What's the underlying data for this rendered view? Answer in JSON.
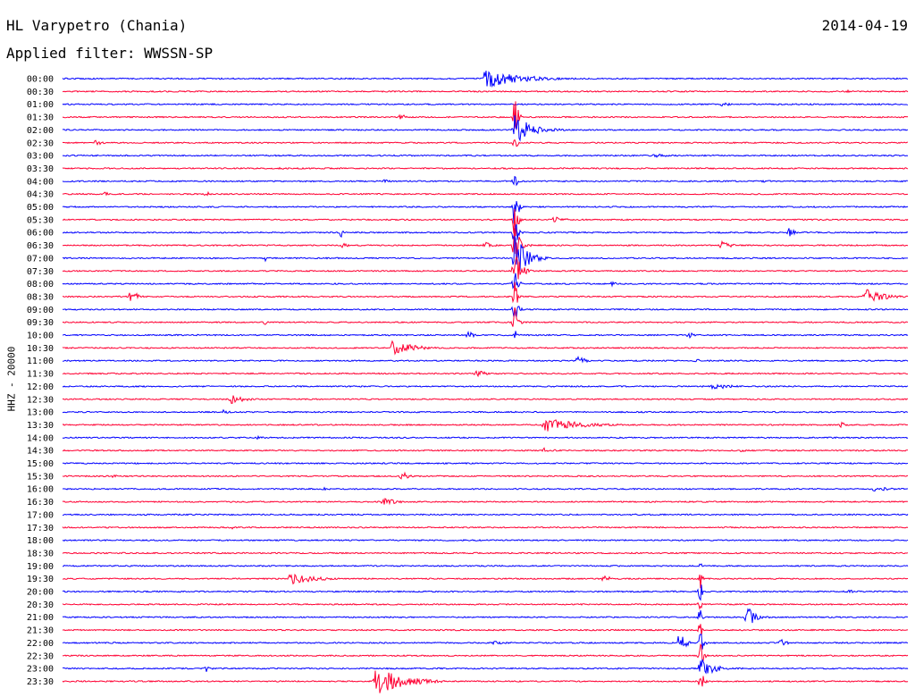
{
  "header": {
    "station": "HL Varypetro (Chania)",
    "date": "2014-04-19",
    "filter": "Applied filter: WWSSN-SP",
    "channel_label": "HHZ - 20000"
  },
  "colors": {
    "trace_even": "#0000ff",
    "trace_odd": "#ff0033"
  },
  "chart_data": {
    "type": "line",
    "title": "HL Varypetro (Chania)",
    "subtitle": "Applied filter: WWSSN-SP",
    "ylabel": "HHZ - 20000",
    "xlabel": "",
    "grid": false,
    "traces": [
      {
        "time": "00:00",
        "events": [
          {
            "at": 0.5,
            "amp": 11,
            "dur": 0.12
          }
        ]
      },
      {
        "time": "00:30",
        "events": [
          {
            "at": 0.93,
            "amp": 2,
            "dur": 0.02
          }
        ]
      },
      {
        "time": "01:00",
        "events": [
          {
            "at": 0.78,
            "amp": 3,
            "dur": 0.03
          }
        ]
      },
      {
        "time": "01:30",
        "events": [
          {
            "at": 0.4,
            "amp": 4,
            "dur": 0.02
          },
          {
            "at": 0.535,
            "amp": 28,
            "dur": 0.01
          }
        ]
      },
      {
        "time": "02:00",
        "events": [
          {
            "at": 0.535,
            "amp": 17,
            "dur": 0.06
          }
        ]
      },
      {
        "time": "02:30",
        "events": [
          {
            "at": 0.04,
            "amp": 4,
            "dur": 0.02
          },
          {
            "at": 0.535,
            "amp": 10,
            "dur": 0.01
          }
        ]
      },
      {
        "time": "03:00",
        "events": [
          {
            "at": 0.7,
            "amp": 2,
            "dur": 0.08
          }
        ]
      },
      {
        "time": "03:30",
        "events": [
          {
            "at": 0.25,
            "amp": 1,
            "dur": 0.3
          }
        ]
      },
      {
        "time": "04:00",
        "events": [
          {
            "at": 0.38,
            "amp": 3,
            "dur": 0.02
          },
          {
            "at": 0.83,
            "amp": 3,
            "dur": 0.02
          },
          {
            "at": 0.535,
            "amp": 8,
            "dur": 0.01
          }
        ]
      },
      {
        "time": "04:30",
        "events": [
          {
            "at": 0.05,
            "amp": 3,
            "dur": 0.02
          },
          {
            "at": 0.17,
            "amp": 3,
            "dur": 0.02
          }
        ]
      },
      {
        "time": "05:00",
        "events": [
          {
            "at": 0.535,
            "amp": 32,
            "dur": 0.01
          }
        ]
      },
      {
        "time": "05:30",
        "events": [
          {
            "at": 0.58,
            "amp": 4,
            "dur": 0.04
          },
          {
            "at": 0.535,
            "amp": 25,
            "dur": 0.01
          }
        ]
      },
      {
        "time": "06:00",
        "events": [
          {
            "at": 0.33,
            "amp": 6,
            "dur": 0.005
          },
          {
            "at": 0.86,
            "amp": 6,
            "dur": 0.02
          },
          {
            "at": 0.535,
            "amp": 22,
            "dur": 0.01
          }
        ]
      },
      {
        "time": "06:30",
        "events": [
          {
            "at": 0.33,
            "amp": 3,
            "dur": 0.03
          },
          {
            "at": 0.5,
            "amp": 4,
            "dur": 0.03
          },
          {
            "at": 0.78,
            "amp": 5,
            "dur": 0.03
          },
          {
            "at": 0.535,
            "amp": 24,
            "dur": 0.02
          }
        ]
      },
      {
        "time": "07:00",
        "events": [
          {
            "at": 0.535,
            "amp": 28,
            "dur": 0.04
          },
          {
            "at": 0.24,
            "amp": 4,
            "dur": 0.01
          }
        ]
      },
      {
        "time": "07:30",
        "events": [
          {
            "at": 0.535,
            "amp": 24,
            "dur": 0.02
          }
        ]
      },
      {
        "time": "08:00",
        "events": [
          {
            "at": 0.535,
            "amp": 18,
            "dur": 0.01
          },
          {
            "at": 0.65,
            "amp": 3,
            "dur": 0.02
          }
        ]
      },
      {
        "time": "08:30",
        "events": [
          {
            "at": 0.08,
            "amp": 11,
            "dur": 0.02
          },
          {
            "at": 0.95,
            "amp": 9,
            "dur": 0.06
          },
          {
            "at": 0.535,
            "amp": 18,
            "dur": 0.01
          }
        ]
      },
      {
        "time": "09:00",
        "events": [
          {
            "at": 0.535,
            "amp": 18,
            "dur": 0.01
          }
        ]
      },
      {
        "time": "09:30",
        "events": [
          {
            "at": 0.24,
            "amp": 3,
            "dur": 0.01
          },
          {
            "at": 0.535,
            "amp": 18,
            "dur": 0.01
          }
        ]
      },
      {
        "time": "10:00",
        "events": [
          {
            "at": 0.48,
            "amp": 5,
            "dur": 0.02
          },
          {
            "at": 0.535,
            "amp": 7,
            "dur": 0.01
          },
          {
            "at": 0.74,
            "amp": 4,
            "dur": 0.02
          }
        ]
      },
      {
        "time": "10:30",
        "events": [
          {
            "at": 0.39,
            "amp": 9,
            "dur": 0.07
          }
        ]
      },
      {
        "time": "11:00",
        "events": [
          {
            "at": 0.61,
            "amp": 7,
            "dur": 0.02
          },
          {
            "at": 0.75,
            "amp": 2,
            "dur": 0.02
          }
        ]
      },
      {
        "time": "11:30",
        "events": [
          {
            "at": 0.49,
            "amp": 4,
            "dur": 0.04
          }
        ]
      },
      {
        "time": "12:00",
        "events": [
          {
            "at": 0.77,
            "amp": 4,
            "dur": 0.06
          }
        ]
      },
      {
        "time": "12:30",
        "events": [
          {
            "at": 0.2,
            "amp": 5,
            "dur": 0.05
          }
        ]
      },
      {
        "time": "13:00",
        "events": [
          {
            "at": 0.19,
            "amp": 3,
            "dur": 0.02
          }
        ]
      },
      {
        "time": "13:30",
        "events": [
          {
            "at": 0.57,
            "amp": 8,
            "dur": 0.12
          },
          {
            "at": 0.92,
            "amp": 4,
            "dur": 0.02
          }
        ]
      },
      {
        "time": "14:00",
        "events": [
          {
            "at": 0.23,
            "amp": 2,
            "dur": 0.03
          }
        ]
      },
      {
        "time": "14:30",
        "events": [
          {
            "at": 0.57,
            "amp": 3,
            "dur": 0.04
          },
          {
            "at": 0.8,
            "amp": 2,
            "dur": 0.04
          }
        ]
      },
      {
        "time": "15:00",
        "events": []
      },
      {
        "time": "15:30",
        "events": [
          {
            "at": 0.4,
            "amp": 8,
            "dur": 0.02
          },
          {
            "at": 0.06,
            "amp": 2,
            "dur": 0.02
          }
        ]
      },
      {
        "time": "16:00",
        "events": [
          {
            "at": 0.31,
            "amp": 2,
            "dur": 0.02
          },
          {
            "at": 0.96,
            "amp": 3,
            "dur": 0.06
          }
        ]
      },
      {
        "time": "16:30",
        "events": [
          {
            "at": 0.38,
            "amp": 5,
            "dur": 0.04
          }
        ]
      },
      {
        "time": "17:00",
        "events": []
      },
      {
        "time": "17:30",
        "events": [
          {
            "at": 0.2,
            "amp": 2,
            "dur": 0.01
          }
        ]
      },
      {
        "time": "18:00",
        "events": []
      },
      {
        "time": "18:30",
        "events": []
      },
      {
        "time": "19:00",
        "events": [
          {
            "at": 0.755,
            "amp": 8,
            "dur": 0.005
          }
        ]
      },
      {
        "time": "19:30",
        "events": [
          {
            "at": 0.27,
            "amp": 7,
            "dur": 0.08
          },
          {
            "at": 0.64,
            "amp": 4,
            "dur": 0.03
          },
          {
            "at": 0.755,
            "amp": 14,
            "dur": 0.005
          }
        ]
      },
      {
        "time": "20:00",
        "events": [
          {
            "at": 0.755,
            "amp": 14,
            "dur": 0.005
          },
          {
            "at": 0.93,
            "amp": 2,
            "dur": 0.04
          }
        ]
      },
      {
        "time": "20:30",
        "events": [
          {
            "at": 0.755,
            "amp": 14,
            "dur": 0.005
          }
        ]
      },
      {
        "time": "21:00",
        "events": [
          {
            "at": 0.81,
            "amp": 12,
            "dur": 0.03
          },
          {
            "at": 0.755,
            "amp": 14,
            "dur": 0.005
          }
        ]
      },
      {
        "time": "21:30",
        "events": [
          {
            "at": 0.755,
            "amp": 14,
            "dur": 0.005
          }
        ]
      },
      {
        "time": "22:00",
        "events": [
          {
            "at": 0.73,
            "amp": 14,
            "dur": 0.02
          },
          {
            "at": 0.755,
            "amp": 14,
            "dur": 0.01
          },
          {
            "at": 0.85,
            "amp": 5,
            "dur": 0.03
          },
          {
            "at": 0.51,
            "amp": 2,
            "dur": 0.08
          }
        ]
      },
      {
        "time": "22:30",
        "events": [
          {
            "at": 0.755,
            "amp": 14,
            "dur": 0.01
          }
        ]
      },
      {
        "time": "23:00",
        "events": [
          {
            "at": 0.17,
            "amp": 4,
            "dur": 0.02
          },
          {
            "at": 0.755,
            "amp": 14,
            "dur": 0.04
          }
        ]
      },
      {
        "time": "23:30",
        "events": [
          {
            "at": 0.37,
            "amp": 17,
            "dur": 0.09
          },
          {
            "at": 0.755,
            "amp": 14,
            "dur": 0.01
          }
        ]
      }
    ]
  }
}
